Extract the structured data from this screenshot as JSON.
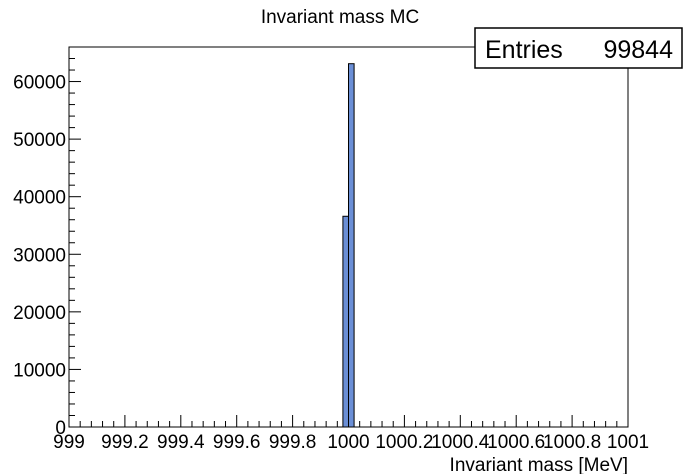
{
  "chart_data": {
    "type": "bar",
    "title": "Invariant mass MC",
    "xlabel": "Invariant mass [MeV]",
    "ylabel": "",
    "xlim": [
      999,
      1001
    ],
    "ylim": [
      0,
      66000
    ],
    "x_ticks": [
      "999",
      "999.2",
      "999.4",
      "999.6",
      "999.8",
      "1000",
      "1000.2",
      "1000.4",
      "1000.6",
      "1000.8",
      "1001"
    ],
    "x_tick_values": [
      999,
      999.2,
      999.4,
      999.6,
      999.8,
      1000,
      1000.2,
      1000.4,
      1000.6,
      1000.8,
      1001
    ],
    "y_ticks": [
      "0",
      "10000",
      "20000",
      "30000",
      "40000",
      "50000",
      "60000"
    ],
    "y_tick_values": [
      0,
      10000,
      20000,
      30000,
      40000,
      50000,
      60000
    ],
    "bins": [
      {
        "low": 999.98,
        "high": 1000.0,
        "value": 36600
      },
      {
        "low": 1000.0,
        "high": 1000.02,
        "value": 63100
      }
    ],
    "fill_color": "#6b8fd6",
    "line_color": "#000000",
    "grid": false,
    "stats": {
      "label": "Entries",
      "value": "99844"
    }
  }
}
